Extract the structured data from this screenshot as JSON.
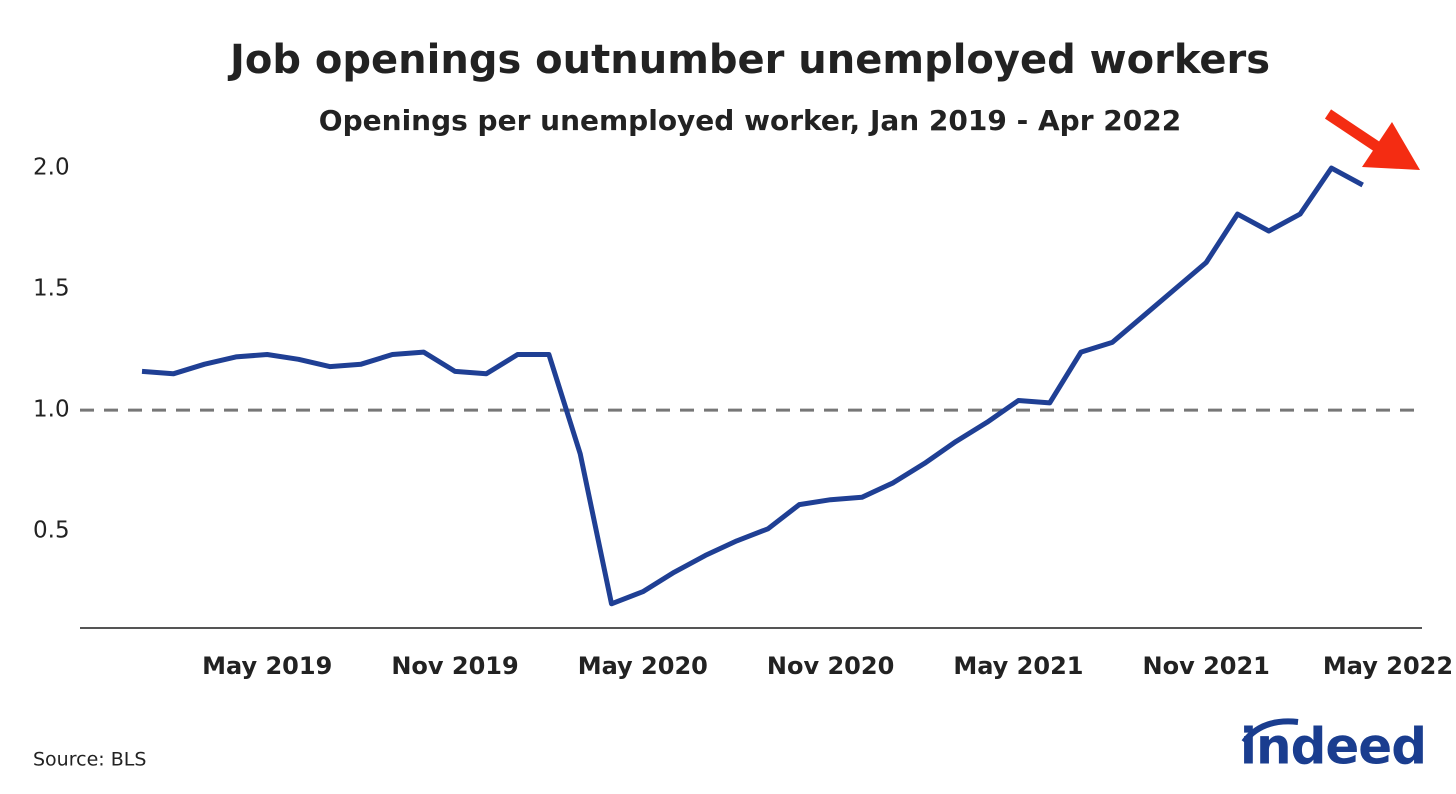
{
  "chart_data": {
    "type": "line",
    "title": "Job openings outnumber unemployed workers",
    "subtitle": "Openings per unemployed worker, Jan 2019 - Apr 2022",
    "x": [
      "2019-01",
      "2019-02",
      "2019-03",
      "2019-04",
      "2019-05",
      "2019-06",
      "2019-07",
      "2019-08",
      "2019-09",
      "2019-10",
      "2019-11",
      "2019-12",
      "2020-01",
      "2020-02",
      "2020-03",
      "2020-04",
      "2020-05",
      "2020-06",
      "2020-07",
      "2020-08",
      "2020-09",
      "2020-10",
      "2020-11",
      "2020-12",
      "2021-01",
      "2021-02",
      "2021-03",
      "2021-04",
      "2021-05",
      "2021-06",
      "2021-07",
      "2021-08",
      "2021-09",
      "2021-10",
      "2021-11",
      "2021-12",
      "2022-01",
      "2022-02",
      "2022-03",
      "2022-04"
    ],
    "series": [
      {
        "color": "#1f3f94",
        "values": [
          1.16,
          1.15,
          1.19,
          1.22,
          1.23,
          1.21,
          1.18,
          1.19,
          1.23,
          1.24,
          1.16,
          1.15,
          1.23,
          1.23,
          0.82,
          0.2,
          0.25,
          0.33,
          0.4,
          0.46,
          0.51,
          0.61,
          0.63,
          0.64,
          0.7,
          0.78,
          0.87,
          0.95,
          1.04,
          1.03,
          1.24,
          1.28,
          1.39,
          1.5,
          1.61,
          1.81,
          1.74,
          1.81,
          2.0,
          1.93
        ]
      }
    ],
    "xticks": [
      {
        "value": "2019-05",
        "label": "May 2019"
      },
      {
        "value": "2019-11",
        "label": "Nov 2019"
      },
      {
        "value": "2020-05",
        "label": "May 2020"
      },
      {
        "value": "2020-11",
        "label": "Nov 2020"
      },
      {
        "value": "2021-05",
        "label": "May 2021"
      },
      {
        "value": "2021-11",
        "label": "Nov 2021"
      },
      {
        "value": "2022-05",
        "label": "May 2022"
      }
    ],
    "ylim": [
      0.1,
      2.05
    ],
    "yticks": [
      0.5,
      {
        "value": 1,
        "label": "1.0"
      },
      1.5,
      {
        "value": 2,
        "label": "2.0"
      }
    ],
    "reference_line": 1,
    "source": "Source: BLS",
    "logo": "indeed"
  }
}
